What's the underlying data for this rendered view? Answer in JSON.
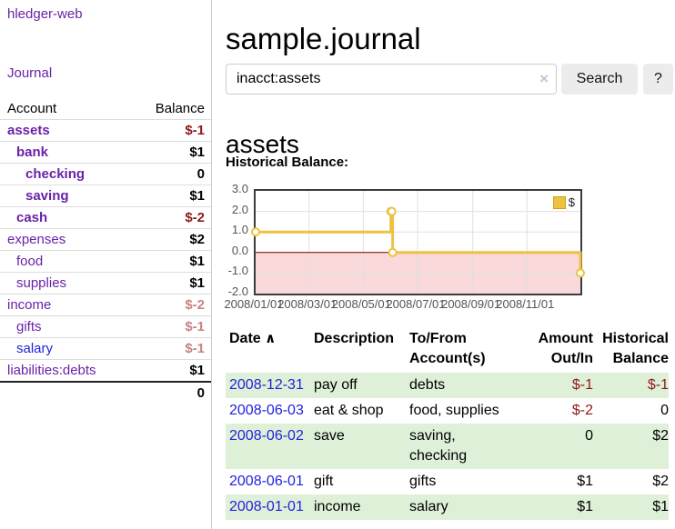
{
  "colors": {
    "link_purple": "#6a22a8",
    "link_blue": "#2222dd",
    "negative_strong": "#8f1a1a",
    "negative_muted": "#c98383",
    "row_green": "#dff0d8",
    "series_yellow": "#EDC240",
    "negative_region_pink": "#f9d9d9",
    "zero_line_red": "#7f0000"
  },
  "sidebar": {
    "brand": "hledger-web",
    "journal_link": "Journal",
    "accounts": {
      "headers": [
        "Account",
        "Balance"
      ],
      "rows": [
        {
          "name": "assets",
          "indent": 1,
          "bold": true,
          "link": "purple",
          "balance": "$-1",
          "balance_class": "neg-strong"
        },
        {
          "name": "bank",
          "indent": 2,
          "bold": true,
          "link": "purple",
          "balance": "$1",
          "balance_class": ""
        },
        {
          "name": "checking",
          "indent": 3,
          "bold": true,
          "link": "purple",
          "balance": "0",
          "balance_class": ""
        },
        {
          "name": "saving",
          "indent": 3,
          "bold": true,
          "link": "purple",
          "balance": "$1",
          "balance_class": ""
        },
        {
          "name": "cash",
          "indent": 2,
          "bold": true,
          "link": "purple",
          "balance": "$-2",
          "balance_class": "neg-strong"
        },
        {
          "name": "expenses",
          "indent": 1,
          "bold": false,
          "link": "purple",
          "balance": "$2",
          "balance_class": ""
        },
        {
          "name": "food",
          "indent": 2,
          "bold": false,
          "link": "purple",
          "balance": "$1",
          "balance_class": ""
        },
        {
          "name": "supplies",
          "indent": 2,
          "bold": false,
          "link": "purple",
          "balance": "$1",
          "balance_class": ""
        },
        {
          "name": "income",
          "indent": 1,
          "bold": false,
          "link": "purple",
          "balance": "$-2",
          "balance_class": "neg-muted"
        },
        {
          "name": "gifts",
          "indent": 2,
          "bold": false,
          "link": "purple",
          "balance": "$-1",
          "balance_class": "neg-muted"
        },
        {
          "name": "salary",
          "indent": 2,
          "bold": false,
          "link": "blue",
          "balance": "$-1",
          "balance_class": "neg-muted"
        },
        {
          "name": "liabilities:debts",
          "indent": 1,
          "bold": false,
          "link": "purple",
          "balance": "$1",
          "balance_class": ""
        }
      ],
      "total": "0"
    }
  },
  "main": {
    "title": "sample.journal",
    "search": {
      "value": "inacct:assets",
      "clear_icon": "×",
      "search_button": "Search",
      "help_button": "?"
    },
    "account_heading": "assets",
    "chart_label": "Historical Balance:",
    "register": {
      "headers": [
        "Date",
        "Description",
        "To/From Account(s)",
        "Amount Out/In",
        "Historical Balance"
      ],
      "sort_icon": "∧",
      "rows": [
        {
          "date": "2008-12-31",
          "description": "pay off",
          "accounts": "debts",
          "amount": "$-1",
          "amount_neg": true,
          "balance": "$-1",
          "balance_neg": true
        },
        {
          "date": "2008-06-03",
          "description": "eat & shop",
          "accounts": "food, supplies",
          "amount": "$-2",
          "amount_neg": true,
          "balance": "0",
          "balance_neg": false
        },
        {
          "date": "2008-06-02",
          "description": "save",
          "accounts": "saving, checking",
          "amount": "0",
          "amount_neg": false,
          "balance": "$2",
          "balance_neg": false
        },
        {
          "date": "2008-06-01",
          "description": "gift",
          "accounts": "gifts",
          "amount": "$1",
          "amount_neg": false,
          "balance": "$2",
          "balance_neg": false
        },
        {
          "date": "2008-01-01",
          "description": "income",
          "accounts": "salary",
          "amount": "$1",
          "amount_neg": false,
          "balance": "$1",
          "balance_neg": false
        }
      ]
    }
  },
  "chart_data": {
    "type": "line",
    "subtype": "step",
    "title": "Historical Balance:",
    "legend": {
      "position": "top-right",
      "entries": [
        {
          "label": "$",
          "color": "#EDC240"
        }
      ]
    },
    "x_range": [
      "2008/01/01",
      "2008/12/31"
    ],
    "y_range": [
      -2,
      3
    ],
    "x_ticks": [
      "2008/01/01",
      "2008/03/01",
      "2008/05/01",
      "2008/07/01",
      "2008/09/01",
      "2008/11/01"
    ],
    "y_ticks": [
      "3.0",
      "2.0",
      "1.0",
      "0.0",
      "-1.0",
      "-2.0"
    ],
    "series": [
      {
        "name": "$",
        "color": "#EDC240",
        "points": [
          [
            "2008/01/01",
            1
          ],
          [
            "2008/06/01",
            2
          ],
          [
            "2008/06/02",
            2
          ],
          [
            "2008/06/03",
            0
          ],
          [
            "2008/12/31",
            -1
          ]
        ]
      }
    ],
    "negative_region": {
      "below": 0,
      "color": "#f9d9d9"
    },
    "zero_line_color": "#7f0000",
    "grid": true
  }
}
